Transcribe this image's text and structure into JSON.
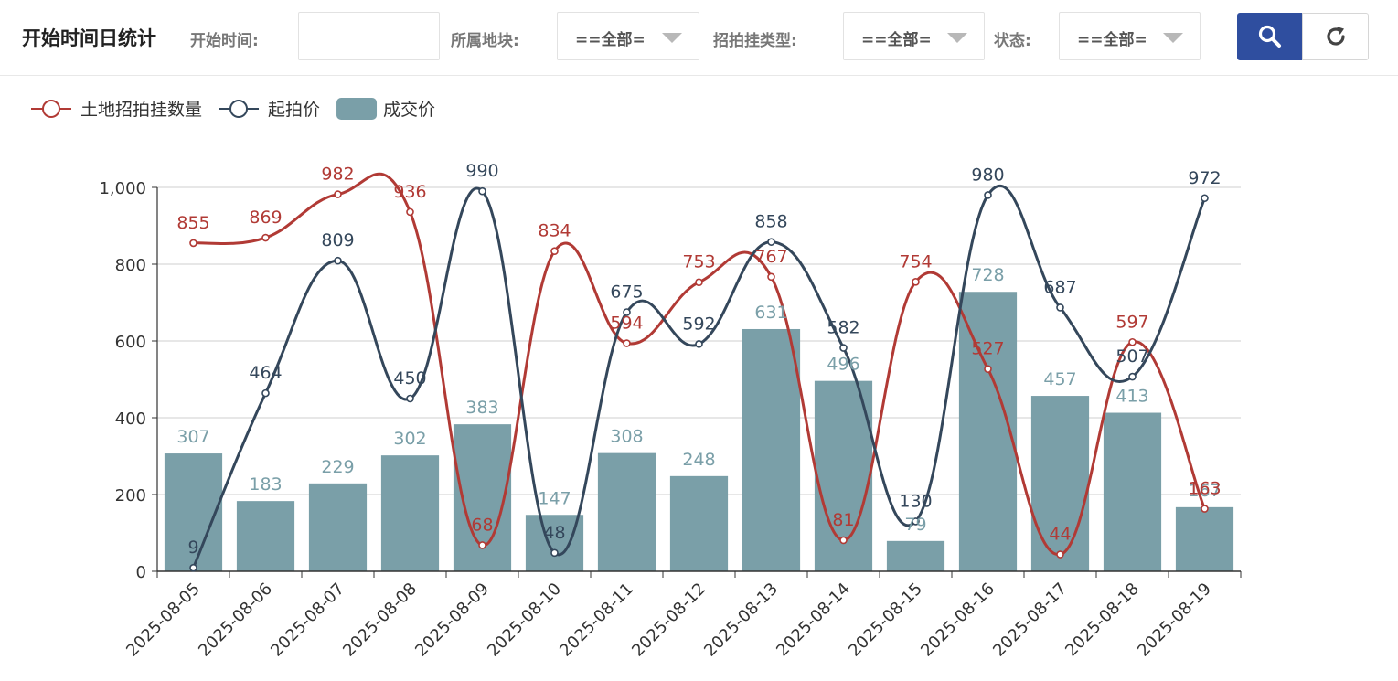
{
  "page": {
    "title": "开始时间日统计"
  },
  "filters": {
    "start_time_label": "开始时间:",
    "start_time_value": "",
    "block_label": "所属地块:",
    "block_value": "==全部==",
    "type_label": "招拍挂类型:",
    "type_value": "==全部==",
    "status_label": "状态:",
    "status_value": "==全部=="
  },
  "icons": {
    "search": "search-icon",
    "refresh": "refresh-icon"
  },
  "colors": {
    "primary": "#2f4e9f",
    "series_count": "#b13a35",
    "series_start": "#34475b",
    "series_deal": "#7a9fa8"
  },
  "chart_data": {
    "type": "bar",
    "title": "",
    "xlabel": "",
    "ylabel": "",
    "ylim": [
      0,
      1000
    ],
    "yticks": [
      0,
      200,
      400,
      600,
      800,
      1000
    ],
    "ytick_labels": [
      "0",
      "200",
      "400",
      "600",
      "800",
      "1,000"
    ],
    "grid": true,
    "legend_position": "top-left",
    "categories": [
      "2025-08-05",
      "2025-08-06",
      "2025-08-07",
      "2025-08-08",
      "2025-08-09",
      "2025-08-10",
      "2025-08-11",
      "2025-08-12",
      "2025-08-13",
      "2025-08-14",
      "2025-08-15",
      "2025-08-16",
      "2025-08-17",
      "2025-08-18",
      "2025-08-19"
    ],
    "series": [
      {
        "name": "土地招拍挂数量",
        "type": "line",
        "smooth": true,
        "color": "#b13a35",
        "values": [
          855,
          869,
          982,
          936,
          68,
          834,
          594,
          753,
          767,
          81,
          754,
          527,
          44,
          597,
          163
        ]
      },
      {
        "name": "起拍价",
        "type": "line",
        "smooth": true,
        "color": "#34475b",
        "values": [
          9,
          464,
          809,
          450,
          990,
          48,
          675,
          592,
          858,
          582,
          130,
          980,
          687,
          507,
          972
        ]
      },
      {
        "name": "成交价",
        "type": "bar",
        "color": "#7a9fa8",
        "values": [
          307,
          183,
          229,
          302,
          383,
          147,
          308,
          248,
          631,
          496,
          79,
          728,
          457,
          413,
          167
        ]
      }
    ]
  }
}
